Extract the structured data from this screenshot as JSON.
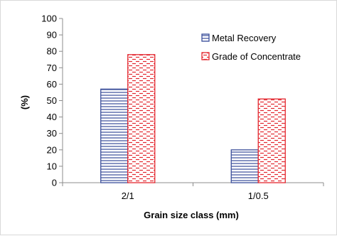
{
  "chart_data": {
    "type": "bar",
    "categories": [
      "2/1",
      "1/0.5"
    ],
    "series": [
      {
        "name": "Metal Recovery",
        "values": [
          57,
          20
        ],
        "color": "#3a4e9a",
        "pattern": "horizontal-lines"
      },
      {
        "name": "Grade of Concentrate",
        "values": [
          78,
          51
        ],
        "color": "#e3262e",
        "pattern": "dashed-horizontal"
      }
    ],
    "xlabel": "Grain size class (mm)",
    "ylabel": "(%)",
    "ylim": [
      0,
      100
    ],
    "yticks": [
      0,
      10,
      20,
      30,
      40,
      50,
      60,
      70,
      80,
      90,
      100
    ],
    "grid": false,
    "legend_position": "top-right"
  }
}
